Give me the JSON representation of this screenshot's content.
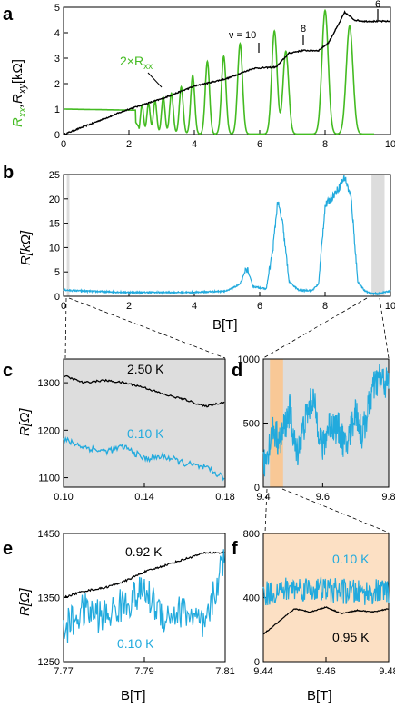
{
  "colors": {
    "green": "#44bb22",
    "black": "#000000",
    "blue": "#22aadd",
    "gray_band": "#dddddd",
    "orange_band": "#fce0c4",
    "orange_region": "#f8c896"
  },
  "chart_data": [
    {
      "id": "a",
      "panel_label": "a",
      "type": "line",
      "xlim": [
        0,
        10
      ],
      "ylim": [
        0,
        5
      ],
      "x_ticks": [
        "0",
        "2",
        "4",
        "6",
        "8",
        "10"
      ],
      "y_ticks": [
        "0",
        "1",
        "2",
        "3",
        "4",
        "5"
      ],
      "ylabel_green": "R_xx",
      "ylabel_black": ", R_xy [kΩ]",
      "series_label": "2×R_xx",
      "annotations": [
        {
          "text": "ν = 10",
          "x": 6.0
        },
        {
          "text": "8",
          "x": 7.1
        },
        {
          "text": "6",
          "x": 9.9
        }
      ],
      "series": [
        {
          "name": "R_xy",
          "color": "black",
          "x": [
            0,
            1,
            2,
            3,
            3.5,
            4,
            4.5,
            5,
            5.5,
            5.8,
            6.5,
            6.9,
            7.3,
            7.8,
            8.1,
            8.4,
            8.6,
            8.9,
            9.2,
            10
          ],
          "y": [
            0,
            0.5,
            1.0,
            1.4,
            1.65,
            1.9,
            2.05,
            2.2,
            2.45,
            2.6,
            2.65,
            3.2,
            3.3,
            3.3,
            3.6,
            4.3,
            4.8,
            4.5,
            4.45,
            4.45
          ]
        },
        {
          "name": "2×R_xx",
          "color": "green",
          "peaks": [
            {
              "x": 2.4,
              "h": 1.15
            },
            {
              "x": 2.6,
              "h": 1.2
            },
            {
              "x": 2.8,
              "h": 1.3
            },
            {
              "x": 3.05,
              "h": 1.45
            },
            {
              "x": 3.3,
              "h": 1.6
            },
            {
              "x": 3.6,
              "h": 1.85
            },
            {
              "x": 3.95,
              "h": 2.3
            },
            {
              "x": 4.4,
              "h": 2.85
            },
            {
              "x": 4.9,
              "h": 3.05
            },
            {
              "x": 5.4,
              "h": 3.55
            },
            {
              "x": 6.45,
              "h": 4.05
            },
            {
              "x": 6.8,
              "h": 3.25
            },
            {
              "x": 8.0,
              "h": 4.85
            },
            {
              "x": 8.75,
              "h": 4.25
            }
          ]
        }
      ]
    },
    {
      "id": "b",
      "panel_label": "b",
      "type": "line",
      "xlim": [
        0,
        10
      ],
      "ylim": [
        0,
        25
      ],
      "x_ticks": [
        "0",
        "2",
        "4",
        "6",
        "8",
        "10"
      ],
      "y_ticks": [
        "0",
        "5",
        "10",
        "15",
        "20",
        "25"
      ],
      "xlabel": "B[T]",
      "ylabel": "R[kΩ]",
      "highlight_x": [
        [
          0.1,
          0.18
        ],
        [
          9.42,
          9.82
        ]
      ],
      "series": [
        {
          "name": "R",
          "color": "blue",
          "x": [
            0.0,
            0.2,
            1.0,
            2.0,
            3.0,
            4.0,
            5.0,
            5.4,
            5.6,
            5.8,
            6.2,
            6.4,
            6.55,
            6.7,
            6.9,
            7.2,
            7.6,
            7.8,
            8.0,
            8.4,
            8.6,
            8.8,
            9.0,
            9.2,
            9.4,
            9.6,
            9.8,
            10.0
          ],
          "y": [
            1.3,
            1.2,
            1.0,
            0.8,
            0.8,
            0.8,
            1.1,
            2.5,
            5.8,
            2.0,
            1.5,
            9.5,
            19.5,
            15.0,
            3.0,
            1.2,
            1.2,
            2.5,
            18.5,
            22.0,
            24.5,
            20.0,
            3.0,
            1.2,
            0.6,
            0.5,
            0.8,
            1.1
          ]
        }
      ]
    },
    {
      "id": "c",
      "panel_label": "c",
      "type": "line",
      "xlim": [
        0.1,
        0.18
      ],
      "ylim": [
        1080,
        1350
      ],
      "x_ticks": [
        "0.10",
        "0.14",
        "0.18"
      ],
      "y_ticks": [
        "1100",
        "1200",
        "1300"
      ],
      "ylabel": "R[Ω]",
      "series": [
        {
          "name": "2.50 K",
          "color": "black",
          "x": [
            0.1,
            0.11,
            0.12,
            0.13,
            0.14,
            0.15,
            0.16,
            0.17,
            0.18
          ],
          "y": [
            1315,
            1300,
            1305,
            1300,
            1290,
            1275,
            1265,
            1250,
            1260
          ]
        },
        {
          "name": "0.10 K",
          "color": "blue",
          "x": [
            0.1,
            0.11,
            0.12,
            0.13,
            0.14,
            0.15,
            0.16,
            0.17,
            0.18
          ],
          "y": [
            1180,
            1165,
            1155,
            1165,
            1140,
            1145,
            1130,
            1120,
            1100
          ]
        }
      ]
    },
    {
      "id": "d",
      "panel_label": "d",
      "type": "line",
      "xlim": [
        9.42,
        9.8
      ],
      "ylim": [
        0,
        1000
      ],
      "x_ticks": [
        "9.4",
        "9.6",
        "9.8"
      ],
      "y_ticks": [
        "0",
        "500",
        "1000"
      ],
      "highlight_x": [
        [
          9.44,
          9.48
        ]
      ],
      "series": [
        {
          "name": "R",
          "color": "blue",
          "x": [
            9.42,
            9.45,
            9.47,
            9.5,
            9.52,
            9.55,
            9.57,
            9.6,
            9.62,
            9.65,
            9.67,
            9.7,
            9.72,
            9.75,
            9.77,
            9.8
          ],
          "y": [
            150,
            450,
            350,
            600,
            250,
            550,
            700,
            300,
            500,
            450,
            300,
            600,
            400,
            750,
            850,
            800
          ]
        }
      ]
    },
    {
      "id": "e",
      "panel_label": "e",
      "type": "line",
      "xlim": [
        7.77,
        7.81
      ],
      "ylim": [
        1250,
        1450
      ],
      "x_ticks": [
        "7.77",
        "7.79",
        "7.81"
      ],
      "y_ticks": [
        "1250",
        "1350",
        "1450"
      ],
      "xlabel": "B[T]",
      "ylabel": "R[Ω]",
      "series": [
        {
          "name": "0.92 K",
          "color": "black",
          "x": [
            7.77,
            7.775,
            7.78,
            7.785,
            7.79,
            7.795,
            7.8,
            7.805,
            7.81
          ],
          "y": [
            1350,
            1360,
            1365,
            1375,
            1390,
            1400,
            1410,
            1420,
            1420
          ]
        },
        {
          "name": "0.10 K",
          "color": "blue",
          "x": [
            7.77,
            7.775,
            7.78,
            7.785,
            7.79,
            7.795,
            7.8,
            7.805,
            7.81
          ],
          "y": [
            1300,
            1330,
            1320,
            1340,
            1360,
            1320,
            1330,
            1300,
            1420
          ]
        }
      ]
    },
    {
      "id": "f",
      "panel_label": "f",
      "type": "line",
      "xlim": [
        9.44,
        9.48
      ],
      "ylim": [
        0,
        800
      ],
      "x_ticks": [
        "9.44",
        "9.46",
        "9.48"
      ],
      "y_ticks": [
        "0",
        "400",
        "800"
      ],
      "xlabel": "B[T]",
      "series": [
        {
          "name": "0.10 K",
          "color": "blue",
          "x": [
            9.44,
            9.45,
            9.46,
            9.47,
            9.48
          ],
          "y": [
            420,
            460,
            450,
            430,
            440
          ]
        },
        {
          "name": "0.95 K",
          "color": "black",
          "x": [
            9.44,
            9.445,
            9.45,
            9.455,
            9.46,
            9.465,
            9.47,
            9.475,
            9.48
          ],
          "y": [
            170,
            250,
            330,
            310,
            340,
            300,
            320,
            310,
            330
          ]
        }
      ]
    }
  ],
  "text": {
    "a_label": "a",
    "b_label": "b",
    "c_label": "c",
    "d_label": "d",
    "e_label": "e",
    "f_label": "f",
    "nu10": "ν = 10",
    "eight": "8",
    "six": "6",
    "two_rxx": "2×R",
    "two_rxx_sub": "xx",
    "ylabel_a_R": "R",
    "ylabel_a_xx": "xx",
    "ylabel_a_rest": ",R",
    "ylabel_a_xy": "xy",
    "ylabel_a_unit": "[kΩ]",
    "ylabel_b": "R[kΩ]",
    "xlabel_b": "B[T]",
    "ylabel_c": "R[Ω]",
    "c_black": "2.50 K",
    "c_blue": "0.10 K",
    "ylabel_e": "R[Ω]",
    "xlabel_e": "B[T]",
    "e_black": "0.92 K",
    "e_blue": "0.10 K",
    "xlabel_f": "B[T]",
    "f_blue": "0.10 K",
    "f_black": "0.95 K"
  }
}
